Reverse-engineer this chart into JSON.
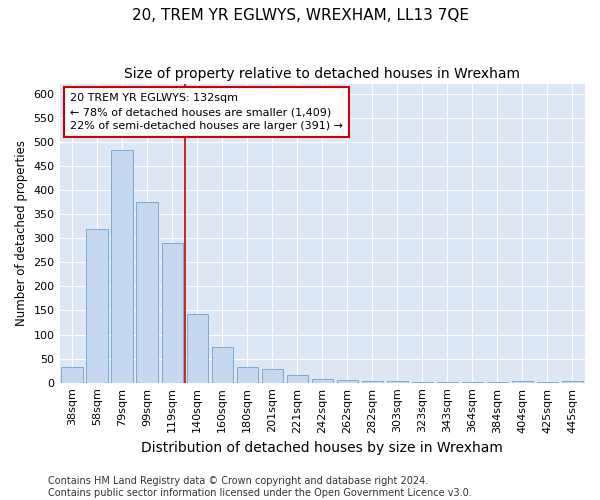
{
  "title": "20, TREM YR EGLWYS, WREXHAM, LL13 7QE",
  "subtitle": "Size of property relative to detached houses in Wrexham",
  "xlabel": "Distribution of detached houses by size in Wrexham",
  "ylabel": "Number of detached properties",
  "categories": [
    "38sqm",
    "58sqm",
    "79sqm",
    "99sqm",
    "119sqm",
    "140sqm",
    "160sqm",
    "180sqm",
    "201sqm",
    "221sqm",
    "242sqm",
    "262sqm",
    "282sqm",
    "303sqm",
    "323sqm",
    "343sqm",
    "364sqm",
    "384sqm",
    "404sqm",
    "425sqm",
    "445sqm"
  ],
  "values": [
    32,
    320,
    483,
    375,
    290,
    143,
    75,
    32,
    29,
    15,
    7,
    6,
    4,
    4,
    2,
    2,
    1,
    1,
    3,
    1,
    4
  ],
  "bar_color": "#c5d8ef",
  "bar_edge_color": "#7aadd4",
  "vline_x_pos": 4.5,
  "vline_color": "#cc0000",
  "annotation_line1": "20 TREM YR EGLWYS: 132sqm",
  "annotation_line2": "← 78% of detached houses are smaller (1,409)",
  "annotation_line3": "22% of semi-detached houses are larger (391) →",
  "annotation_box_facecolor": "#ffffff",
  "annotation_box_edgecolor": "#cc0000",
  "ylim": [
    0,
    620
  ],
  "yticks": [
    0,
    50,
    100,
    150,
    200,
    250,
    300,
    350,
    400,
    450,
    500,
    550,
    600
  ],
  "fig_facecolor": "#ffffff",
  "axes_facecolor": "#dce6f5",
  "grid_color": "#ffffff",
  "title_fontsize": 11,
  "subtitle_fontsize": 10,
  "xlabel_fontsize": 10,
  "ylabel_fontsize": 8.5,
  "tick_fontsize": 8,
  "annotation_fontsize": 8,
  "footer_fontsize": 7,
  "footer": "Contains HM Land Registry data © Crown copyright and database right 2024.\nContains public sector information licensed under the Open Government Licence v3.0."
}
